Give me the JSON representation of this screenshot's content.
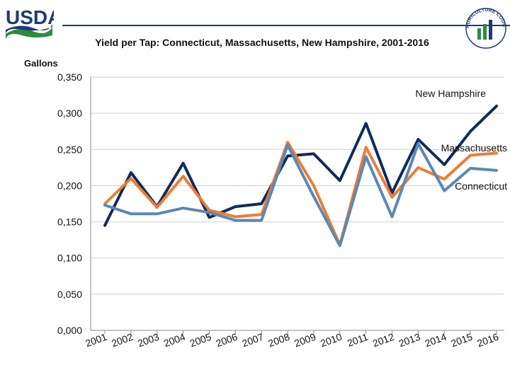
{
  "header": {
    "logo_text": "USDA",
    "seal_text": "AGRICULTURE COUNTS"
  },
  "chart_data": {
    "type": "line",
    "title": "Yield per Tap: Connecticut, Massachusetts, New Hampshire, 2001-2016",
    "ylabel": "Gallons",
    "xlabel": "",
    "ylim": [
      0,
      0.35
    ],
    "yticks": [
      0,
      0.05,
      0.1,
      0.15,
      0.2,
      0.25,
      0.3,
      0.35
    ],
    "ytick_labels": [
      "0,000",
      "0,050",
      "0,100",
      "0,150",
      "0,200",
      "0,250",
      "0,300",
      "0,350"
    ],
    "categories": [
      "2001",
      "2002",
      "2003",
      "2004",
      "2005",
      "2006",
      "2007",
      "2008",
      "2009",
      "2010",
      "2011",
      "2012",
      "2013",
      "2014",
      "2015",
      "2016"
    ],
    "grid": true,
    "series": [
      {
        "name": "New Hampshire",
        "color": "#112a5b",
        "values": [
          0.145,
          0.218,
          0.171,
          0.231,
          0.156,
          0.171,
          0.175,
          0.241,
          0.244,
          0.207,
          0.286,
          0.19,
          0.264,
          0.229,
          0.275,
          0.31
        ]
      },
      {
        "name": "Massachusetts",
        "color": "#ed7d31",
        "values": [
          0.175,
          0.21,
          0.17,
          0.213,
          0.166,
          0.157,
          0.16,
          0.26,
          0.2,
          0.118,
          0.253,
          0.184,
          0.225,
          0.209,
          0.242,
          0.245
        ]
      },
      {
        "name": "Connecticut",
        "color": "#5b87b8",
        "values": [
          0.173,
          0.161,
          0.161,
          0.169,
          0.163,
          0.152,
          0.152,
          0.256,
          0.185,
          0.117,
          0.24,
          0.157,
          0.258,
          0.193,
          0.224,
          0.221
        ]
      }
    ]
  }
}
